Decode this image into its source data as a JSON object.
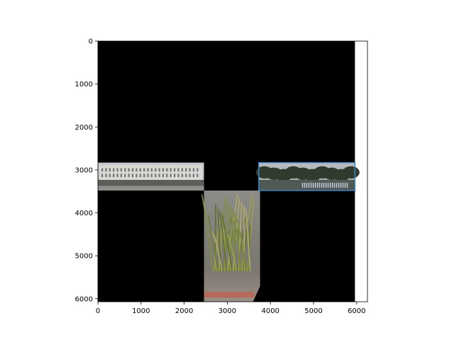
{
  "chart_data": {
    "type": "image",
    "title": "",
    "xlabel": "",
    "ylabel": "",
    "xlim": [
      0,
      6250
    ],
    "ylim": [
      6070,
      0
    ],
    "x_ticks": [
      0,
      1000,
      2000,
      3000,
      4000,
      5000,
      6000
    ],
    "y_ticks": [
      0,
      1000,
      2000,
      3000,
      4000,
      5000,
      6000
    ],
    "x_tick_labels": [
      "0",
      "1000",
      "2000",
      "3000",
      "4000",
      "5000",
      "6000"
    ],
    "y_tick_labels": [
      "0",
      "1000",
      "2000",
      "3000",
      "4000",
      "5000",
      "6000"
    ],
    "grid": false,
    "image_extent": {
      "x": [
        0,
        5960
      ],
      "y": [
        0,
        6070
      ]
    },
    "background_color": "#000000",
    "panels": [
      {
        "name": "left-building",
        "x": [
          0,
          2460
        ],
        "y": [
          2830,
          3480
        ],
        "content": "building facade"
      },
      {
        "name": "center-plants",
        "x": [
          2460,
          3760
        ],
        "y": [
          3480,
          6070
        ],
        "content": "planter with grasses seen from above"
      },
      {
        "name": "right-trees",
        "x": [
          3730,
          5960
        ],
        "y": [
          2830,
          3480
        ],
        "content": "trees and parked bicycles",
        "highlighted": true
      }
    ],
    "highlight_box": {
      "x": [
        3730,
        5960
      ],
      "y": [
        2830,
        3480
      ],
      "color": "#3a84c4"
    }
  }
}
